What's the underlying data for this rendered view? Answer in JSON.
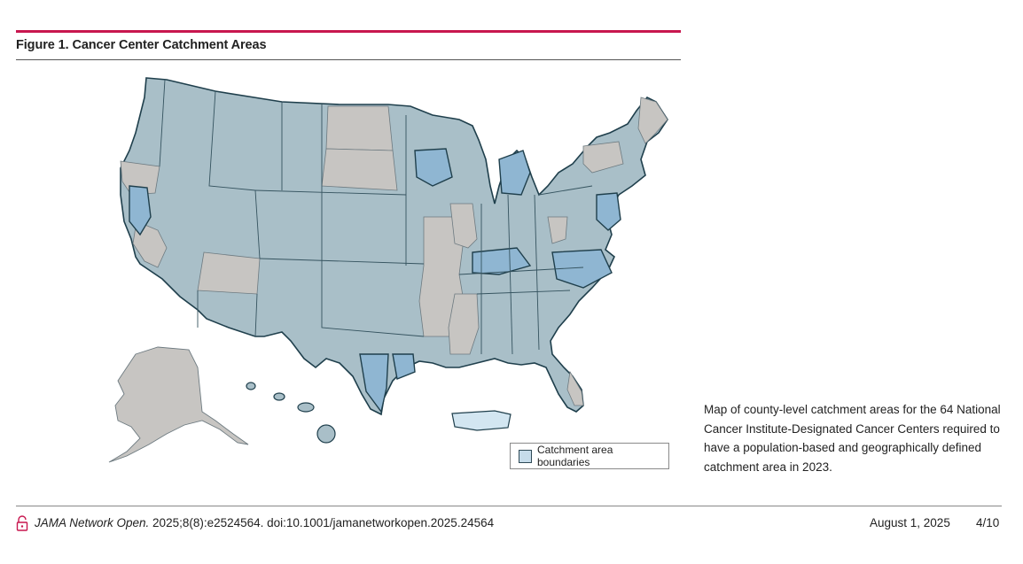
{
  "figure": {
    "title": "Figure 1. Cancer Center Catchment Areas",
    "legend_label": "Catchment area boundaries",
    "caption": "Map of county-level catchment areas for the 64 National Cancer Institute-Designated Cancer Centers required to have a population-based and geographically defined catchment area in 2023.",
    "colors": {
      "catchment_fill": "#a9bfc8",
      "catchment_highlight": "#8fb6d2",
      "non_catchment_fill": "#c7c5c2",
      "puerto_rico_fill": "#d3e6f1",
      "boundary_stroke": "#1f3f4c",
      "accent_rule": "#c8174f"
    }
  },
  "footer": {
    "lock_icon": "open-lock-icon",
    "journal": "JAMA Network Open.",
    "citation_rest": " 2025;8(8):e2524564. doi:10.1001/jamanetworkopen.2025.24564",
    "date": "August  1, 2025",
    "page": "4/10"
  }
}
